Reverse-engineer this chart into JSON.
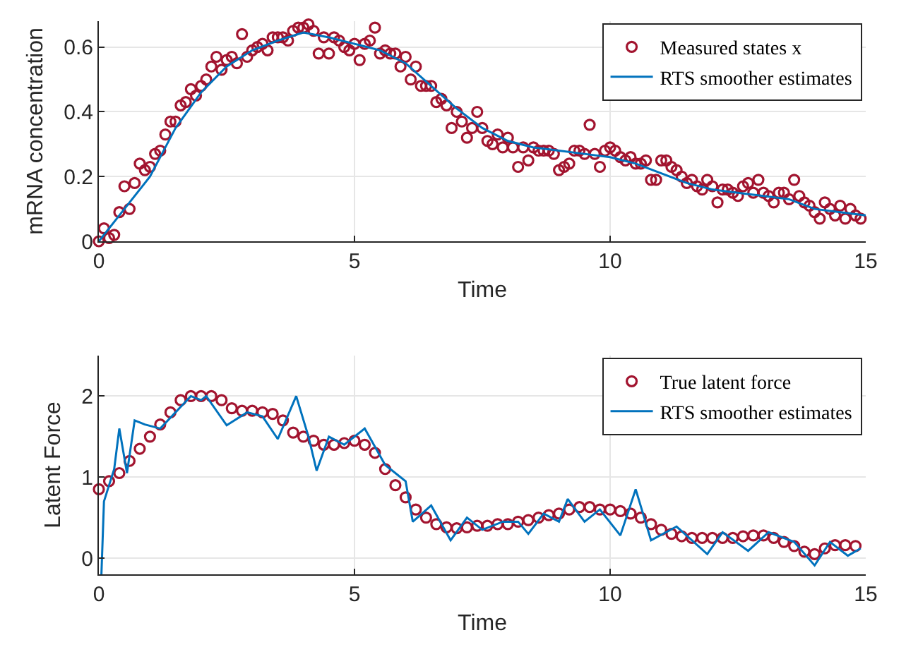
{
  "chart_data": [
    {
      "type": "scatter",
      "xlabel": "Time",
      "ylabel": "mRNA concentration",
      "xlim": [
        0,
        15
      ],
      "ylim": [
        0,
        0.68
      ],
      "xticks": [
        0,
        5,
        10,
        15
      ],
      "yticks": [
        0,
        0.2,
        0.4,
        0.6
      ],
      "grid": true,
      "legend": "top right",
      "series": [
        {
          "name": "Measured states x",
          "marker": "circle",
          "color": "#a2142f",
          "x": [
            0,
            0.1,
            0.2,
            0.3,
            0.4,
            0.5,
            0.6,
            0.7,
            0.8,
            0.9,
            1,
            1.1,
            1.2,
            1.3,
            1.4,
            1.5,
            1.6,
            1.7,
            1.8,
            1.9,
            2,
            2.1,
            2.2,
            2.3,
            2.4,
            2.5,
            2.6,
            2.7,
            2.8,
            2.9,
            3,
            3.1,
            3.2,
            3.3,
            3.4,
            3.5,
            3.6,
            3.7,
            3.8,
            3.9,
            4,
            4.1,
            4.2,
            4.3,
            4.4,
            4.5,
            4.6,
            4.7,
            4.8,
            4.9,
            5,
            5.1,
            5.2,
            5.3,
            5.4,
            5.5,
            5.6,
            5.7,
            5.8,
            5.9,
            6,
            6.1,
            6.2,
            6.3,
            6.4,
            6.5,
            6.6,
            6.7,
            6.8,
            6.9,
            7,
            7.1,
            7.2,
            7.3,
            7.4,
            7.5,
            7.6,
            7.7,
            7.8,
            7.9,
            8,
            8.1,
            8.2,
            8.3,
            8.4,
            8.5,
            8.6,
            8.7,
            8.8,
            8.9,
            9,
            9.1,
            9.2,
            9.3,
            9.4,
            9.5,
            9.6,
            9.7,
            9.8,
            9.9,
            10,
            10.1,
            10.2,
            10.3,
            10.4,
            10.5,
            10.6,
            10.7,
            10.8,
            10.9,
            11,
            11.1,
            11.2,
            11.3,
            11.4,
            11.5,
            11.6,
            11.7,
            11.8,
            11.9,
            12,
            12.1,
            12.2,
            12.3,
            12.4,
            12.5,
            12.6,
            12.7,
            12.8,
            12.9,
            13,
            13.1,
            13.2,
            13.3,
            13.4,
            13.5,
            13.6,
            13.7,
            13.8,
            13.9,
            14,
            14.1,
            14.2,
            14.3,
            14.4,
            14.5,
            14.6,
            14.7,
            14.8,
            14.9
          ],
          "values": [
            0,
            0.04,
            0.01,
            0.02,
            0.09,
            0.17,
            0.1,
            0.18,
            0.24,
            0.22,
            0.23,
            0.27,
            0.28,
            0.33,
            0.37,
            0.37,
            0.42,
            0.43,
            0.47,
            0.45,
            0.48,
            0.5,
            0.54,
            0.57,
            0.53,
            0.56,
            0.57,
            0.55,
            0.64,
            0.57,
            0.59,
            0.6,
            0.61,
            0.59,
            0.63,
            0.63,
            0.63,
            0.62,
            0.65,
            0.66,
            0.66,
            0.67,
            0.65,
            0.58,
            0.63,
            0.58,
            0.63,
            0.62,
            0.6,
            0.59,
            0.61,
            0.56,
            0.61,
            0.62,
            0.66,
            0.58,
            0.59,
            0.58,
            0.58,
            0.54,
            0.57,
            0.5,
            0.54,
            0.48,
            0.48,
            0.48,
            0.43,
            0.44,
            0.42,
            0.35,
            0.4,
            0.37,
            0.32,
            0.35,
            0.4,
            0.35,
            0.31,
            0.3,
            0.33,
            0.29,
            0.32,
            0.29,
            0.23,
            0.29,
            0.25,
            0.29,
            0.28,
            0.28,
            0.28,
            0.27,
            0.22,
            0.23,
            0.24,
            0.28,
            0.28,
            0.27,
            0.36,
            0.27,
            0.23,
            0.28,
            0.29,
            0.28,
            0.26,
            0.25,
            0.26,
            0.24,
            0.24,
            0.25,
            0.19,
            0.19,
            0.25,
            0.25,
            0.23,
            0.22,
            0.2,
            0.18,
            0.19,
            0.17,
            0.16,
            0.19,
            0.17,
            0.12,
            0.16,
            0.16,
            0.15,
            0.14,
            0.17,
            0.18,
            0.15,
            0.19,
            0.15,
            0.14,
            0.12,
            0.15,
            0.15,
            0.13,
            0.19,
            0.14,
            0.12,
            0.11,
            0.09,
            0.07,
            0.12,
            0.1,
            0.08,
            0.11,
            0.07,
            0.1,
            0.08,
            0.07
          ]
        },
        {
          "name": "RTS smoother estimates",
          "type": "line",
          "color": "#0072bd",
          "x": [
            0,
            0.5,
            1,
            1.5,
            2,
            2.5,
            3,
            3.5,
            4,
            4.5,
            5,
            5.5,
            6,
            6.5,
            7,
            7.5,
            8,
            8.5,
            9,
            9.5,
            10,
            10.5,
            11,
            11.5,
            12,
            12.5,
            13,
            13.5,
            14,
            14.5,
            15
          ],
          "values": [
            0,
            0.1,
            0.2,
            0.35,
            0.46,
            0.54,
            0.59,
            0.62,
            0.645,
            0.63,
            0.61,
            0.59,
            0.55,
            0.48,
            0.41,
            0.35,
            0.31,
            0.29,
            0.28,
            0.27,
            0.26,
            0.24,
            0.21,
            0.18,
            0.16,
            0.15,
            0.14,
            0.13,
            0.1,
            0.09,
            0.08
          ]
        }
      ]
    },
    {
      "type": "scatter",
      "xlabel": "Time",
      "ylabel": "Latent Force",
      "xlim": [
        0,
        15
      ],
      "ylim": [
        -0.2,
        2.5
      ],
      "xticks": [
        0,
        5,
        10,
        15
      ],
      "yticks": [
        0,
        1,
        2
      ],
      "grid": true,
      "legend": "top right",
      "series": [
        {
          "name": "True latent force",
          "marker": "circle",
          "color": "#a2142f",
          "x": [
            0,
            0.2,
            0.4,
            0.6,
            0.8,
            1,
            1.2,
            1.4,
            1.6,
            1.8,
            2,
            2.2,
            2.4,
            2.6,
            2.8,
            3,
            3.2,
            3.4,
            3.6,
            3.8,
            4,
            4.2,
            4.4,
            4.6,
            4.8,
            5,
            5.2,
            5.4,
            5.6,
            5.8,
            6,
            6.2,
            6.4,
            6.6,
            6.8,
            7,
            7.2,
            7.4,
            7.6,
            7.8,
            8,
            8.2,
            8.4,
            8.6,
            8.8,
            9,
            9.2,
            9.4,
            9.6,
            9.8,
            10,
            10.2,
            10.4,
            10.6,
            10.8,
            11,
            11.2,
            11.4,
            11.6,
            11.8,
            12,
            12.2,
            12.4,
            12.6,
            12.8,
            13,
            13.2,
            13.4,
            13.6,
            13.8,
            14,
            14.2,
            14.4,
            14.6,
            14.8
          ],
          "values": [
            0.85,
            0.95,
            1.05,
            1.2,
            1.35,
            1.5,
            1.65,
            1.8,
            1.95,
            2,
            2,
            2,
            1.95,
            1.85,
            1.82,
            1.82,
            1.8,
            1.78,
            1.7,
            1.55,
            1.5,
            1.45,
            1.4,
            1.4,
            1.42,
            1.45,
            1.4,
            1.3,
            1.1,
            0.9,
            0.75,
            0.6,
            0.5,
            0.42,
            0.38,
            0.37,
            0.38,
            0.4,
            0.4,
            0.42,
            0.42,
            0.45,
            0.47,
            0.5,
            0.53,
            0.55,
            0.6,
            0.63,
            0.63,
            0.6,
            0.6,
            0.58,
            0.55,
            0.5,
            0.42,
            0.35,
            0.3,
            0.27,
            0.25,
            0.25,
            0.25,
            0.25,
            0.25,
            0.27,
            0.28,
            0.28,
            0.25,
            0.2,
            0.15,
            0.08,
            0.05,
            0.12,
            0.16,
            0.16,
            0.15
          ]
        },
        {
          "name": "RTS smoother estimates",
          "type": "line",
          "color": "#0072bd",
          "x": [
            0.05,
            0.1,
            0.3,
            0.4,
            0.55,
            0.7,
            0.9,
            1.2,
            1.5,
            1.8,
            2,
            2.1,
            2.5,
            2.9,
            3.2,
            3.5,
            3.86,
            4.1,
            4.26,
            4.5,
            4.8,
            5.2,
            5.6,
            6,
            6.14,
            6.5,
            6.88,
            7.2,
            7.5,
            7.9,
            8.2,
            8.4,
            8.7,
            9,
            9.17,
            9.5,
            9.8,
            10.2,
            10.5,
            10.8,
            11.3,
            11.9,
            12.2,
            12.7,
            13.1,
            13.6,
            14,
            14.3,
            14.65,
            14.9
          ],
          "values": [
            -0.2,
            0.7,
            1.1,
            1.6,
            1.05,
            1.7,
            1.65,
            1.6,
            1.8,
            2,
            1.95,
            2,
            1.64,
            1.8,
            1.75,
            1.47,
            2,
            1.5,
            1.08,
            1.5,
            1.4,
            1.6,
            1.15,
            0.95,
            0.45,
            0.65,
            0.22,
            0.5,
            0.35,
            0.45,
            0.45,
            0.3,
            0.55,
            0.45,
            0.73,
            0.45,
            0.6,
            0.28,
            0.85,
            0.22,
            0.39,
            0.05,
            0.32,
            0.09,
            0.32,
            0.2,
            -0.09,
            0.2,
            0.03,
            0.12
          ]
        }
      ]
    }
  ]
}
